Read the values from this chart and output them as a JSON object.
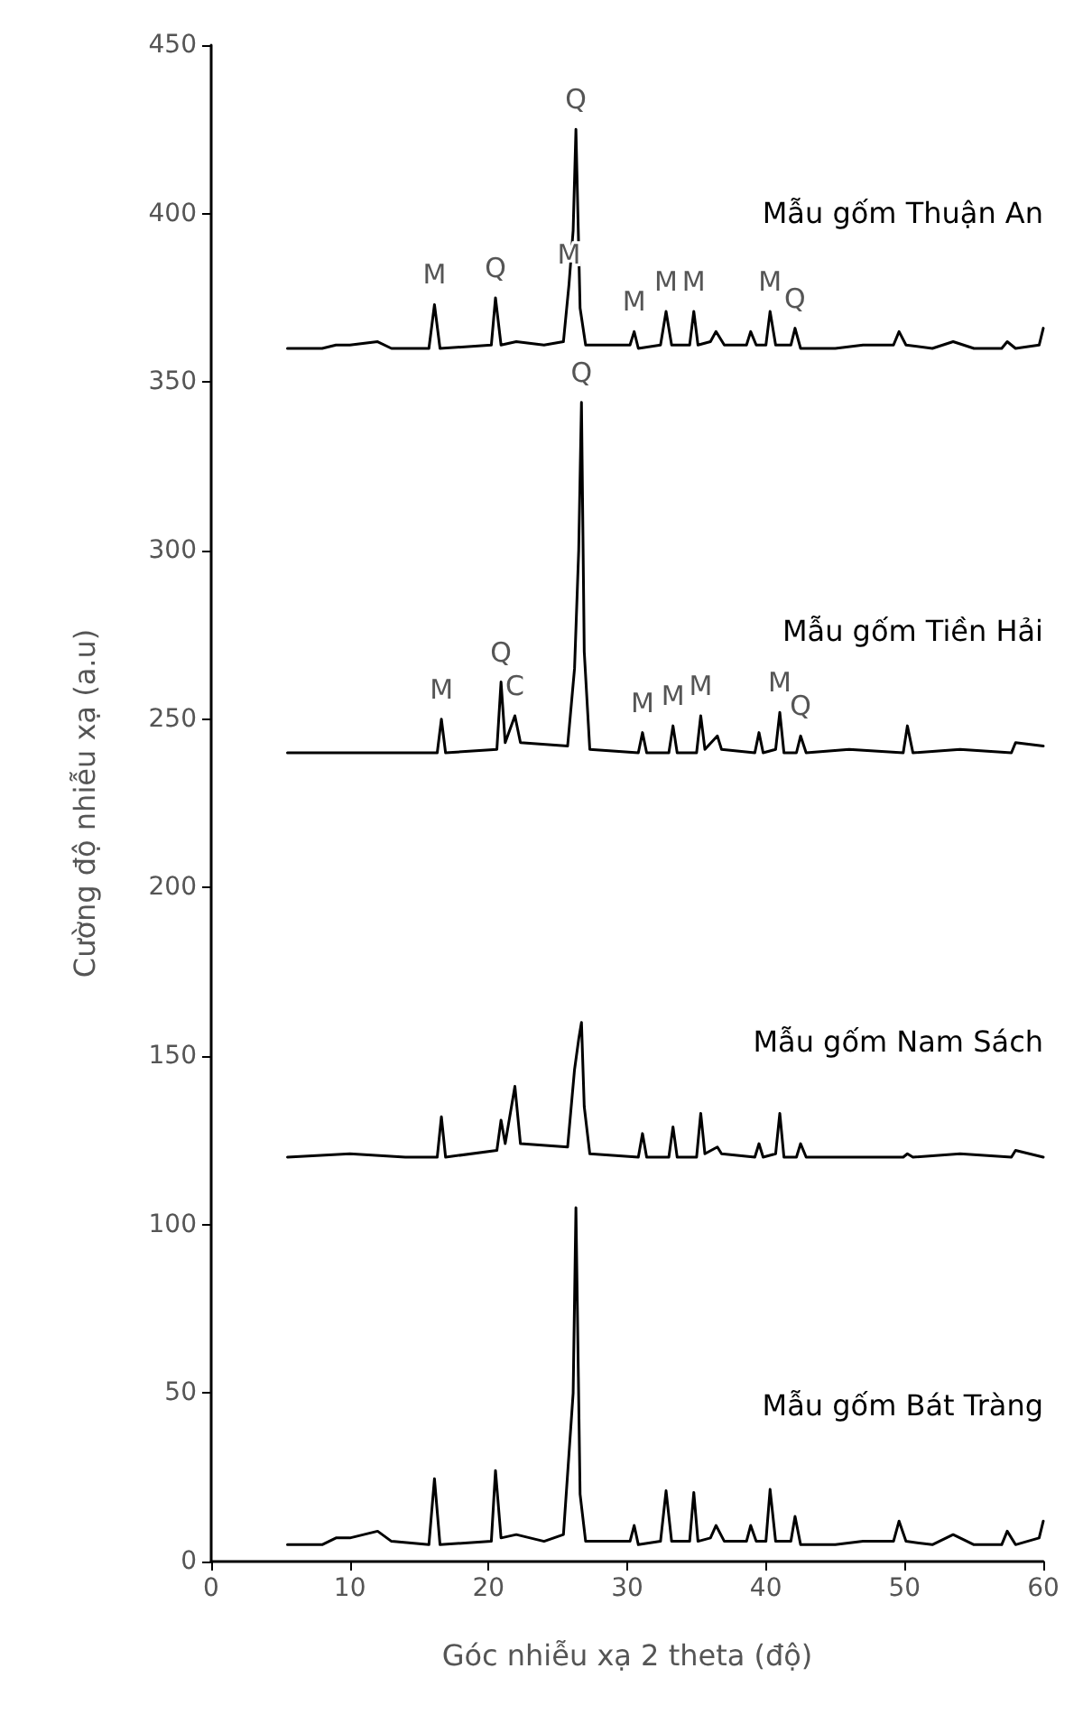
{
  "chart_data": {
    "type": "line",
    "xlabel": "Góc nhiễu xạ 2 theta (độ)",
    "ylabel": "Cường độ nhiễu xạ (a.u)",
    "xlim": [
      0,
      60
    ],
    "xticks": [
      0,
      10,
      20,
      30,
      40,
      50,
      60
    ],
    "ylim": [
      0,
      450
    ],
    "yticks": [
      0,
      50,
      100,
      150,
      200,
      250,
      300,
      350,
      400,
      450
    ],
    "grid": false,
    "legend": false,
    "marker": "none",
    "line_style": "solid",
    "series": [
      {
        "name": "Mẫu gốm Thuận An",
        "color": "#000000",
        "x": [
          5.5,
          8,
          9,
          10,
          12,
          13,
          15.7,
          16.1,
          16.5,
          20.2,
          20.5,
          20.9,
          22,
          24,
          25.4,
          25.8,
          26.1,
          26.3,
          26.6,
          27,
          30.2,
          30.5,
          30.8,
          32.4,
          32.8,
          33.2,
          34.5,
          34.8,
          35.1,
          36,
          36.4,
          37,
          38.6,
          38.9,
          39.3,
          40,
          40.3,
          40.7,
          41.8,
          42.1,
          42.5,
          45,
          47,
          49.2,
          49.6,
          50.1,
          52,
          53.5,
          55,
          57,
          57.4,
          58,
          59.7,
          60
        ],
        "values": [
          360,
          360,
          361,
          361,
          362,
          360,
          360,
          373,
          360,
          361,
          375,
          361,
          362,
          361,
          362,
          379,
          395,
          425,
          372,
          361,
          361,
          365,
          360,
          361,
          371,
          361,
          361,
          371,
          361,
          362,
          365,
          361,
          361,
          365,
          361,
          361,
          371,
          361,
          361,
          366,
          360,
          360,
          361,
          361,
          365,
          361,
          360,
          362,
          360,
          360,
          362,
          360,
          361,
          366
        ]
      },
      {
        "name": "Mẫu gốm Tiền Hải",
        "color": "#000000",
        "x": [
          5.5,
          10,
          14,
          16.3,
          16.6,
          16.9,
          20.6,
          20.9,
          21.2,
          21.9,
          22.3,
          25.7,
          26.2,
          26.5,
          26.7,
          26.9,
          27.3,
          30.8,
          31.1,
          31.4,
          33,
          33.3,
          33.6,
          35,
          35.3,
          35.6,
          36.5,
          36.8,
          39.2,
          39.5,
          39.8,
          40.7,
          41,
          41.3,
          42.2,
          42.5,
          42.9,
          46,
          49.9,
          50.2,
          50.6,
          54,
          57.7,
          58,
          60
        ],
        "values": [
          240,
          240,
          240,
          240,
          250,
          240,
          241,
          261,
          243,
          251,
          243,
          242,
          265,
          300,
          344,
          270,
          241,
          240,
          246,
          240,
          240,
          248,
          240,
          240,
          251,
          241,
          245,
          241,
          240,
          246,
          240,
          241,
          252,
          240,
          240,
          245,
          240,
          241,
          240,
          248,
          240,
          241,
          240,
          243,
          242
        ]
      },
      {
        "name": "Mẫu gốm Nam Sách",
        "color": "#000000",
        "x": [
          5.5,
          10,
          14,
          16.3,
          16.6,
          16.9,
          20.6,
          20.9,
          21.2,
          21.9,
          22.3,
          25.7,
          26.2,
          26.5,
          26.7,
          26.9,
          27.3,
          30.8,
          31.1,
          31.4,
          33,
          33.3,
          33.6,
          35,
          35.3,
          35.6,
          36.5,
          36.8,
          39.2,
          39.5,
          39.8,
          40.7,
          41,
          41.3,
          42.2,
          42.5,
          42.9,
          46,
          49.9,
          50.2,
          50.6,
          54,
          57.7,
          58,
          60
        ],
        "values": [
          120,
          121,
          120,
          120,
          132,
          120,
          122,
          131,
          124,
          141,
          124,
          123,
          146,
          155,
          160,
          135,
          121,
          120,
          127,
          120,
          120,
          129,
          120,
          120,
          133,
          121,
          123,
          121,
          120,
          124,
          120,
          121,
          133,
          120,
          120,
          124,
          120,
          120,
          120,
          121,
          120,
          121,
          120,
          122,
          120
        ]
      },
      {
        "name": "Mẫu gốm Bát Tràng",
        "color": "#000000",
        "x": [
          5.5,
          8,
          9,
          10,
          12,
          13,
          15.7,
          16.1,
          16.5,
          20.2,
          20.5,
          20.9,
          22,
          24,
          25.4,
          25.8,
          26.1,
          26.3,
          26.6,
          27,
          30.2,
          30.5,
          30.8,
          32.4,
          32.8,
          33.2,
          34.5,
          34.8,
          35.1,
          36,
          36.4,
          37,
          38.6,
          38.9,
          39.3,
          40,
          40.3,
          40.7,
          41.8,
          42.1,
          42.5,
          45,
          47,
          49.2,
          49.6,
          50.1,
          52,
          53.5,
          55,
          57,
          57.4,
          58,
          59.7,
          60
        ],
        "values": [
          5,
          5,
          7,
          7,
          9,
          6,
          5,
          24.6,
          5,
          6,
          27,
          7,
          8,
          6,
          8,
          32,
          50,
          105,
          20,
          6,
          6,
          10.7,
          5,
          6,
          21,
          6,
          6,
          20.5,
          6,
          7,
          10.7,
          6,
          6,
          10.7,
          6,
          6,
          21.4,
          6,
          6,
          13.4,
          5,
          5,
          6,
          6,
          12,
          6,
          5,
          8,
          5,
          5,
          9,
          5,
          7,
          12
        ]
      }
    ],
    "annotations": [
      {
        "text": "M",
        "x": 16.1,
        "y": 373
      },
      {
        "text": "Q",
        "x": 20.5,
        "y": 375
      },
      {
        "text": "M",
        "x": 25.8,
        "y": 379
      },
      {
        "text": "Q",
        "x": 26.3,
        "y": 425
      },
      {
        "text": "M",
        "x": 30.5,
        "y": 365
      },
      {
        "text": "M",
        "x": 32.8,
        "y": 371
      },
      {
        "text": "M",
        "x": 34.8,
        "y": 371
      },
      {
        "text": "M",
        "x": 40.3,
        "y": 371
      },
      {
        "text": "Q",
        "x": 42.1,
        "y": 366
      },
      {
        "text": "Q",
        "x": 26.7,
        "y": 344
      },
      {
        "text": "M",
        "x": 16.6,
        "y": 250
      },
      {
        "text": "Q",
        "x": 20.9,
        "y": 261
      },
      {
        "text": "C",
        "x": 21.9,
        "y": 251
      },
      {
        "text": "M",
        "x": 31.1,
        "y": 246
      },
      {
        "text": "M",
        "x": 33.3,
        "y": 248
      },
      {
        "text": "M",
        "x": 35.3,
        "y": 251
      },
      {
        "text": "M",
        "x": 41,
        "y": 252
      },
      {
        "text": "Q",
        "x": 42.5,
        "y": 245
      }
    ]
  }
}
